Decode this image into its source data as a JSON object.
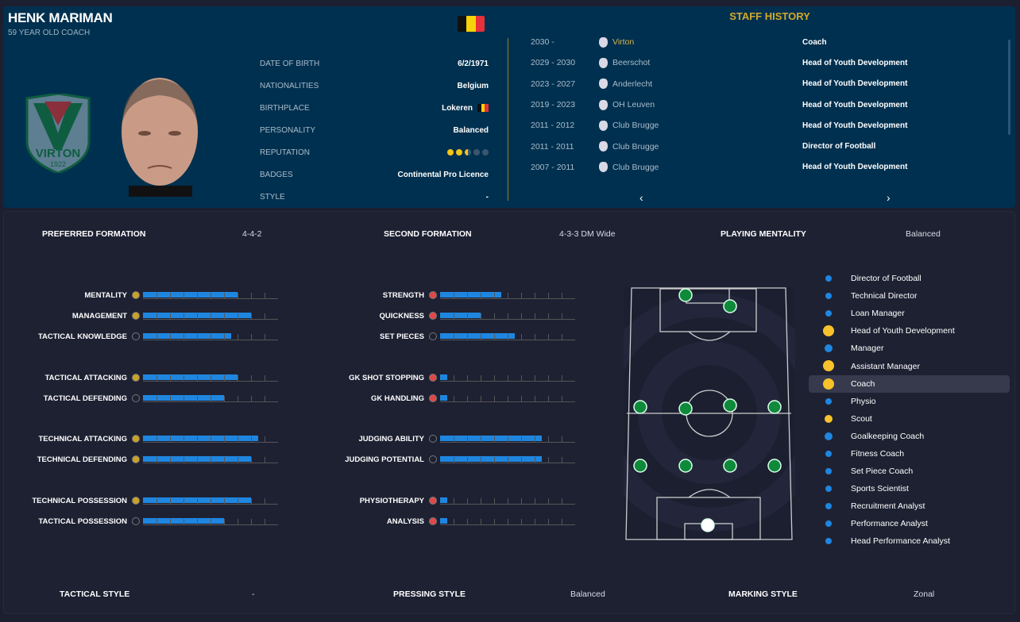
{
  "profile": {
    "name": "HENK MARIMAN",
    "subtitle": "59 YEAR OLD COACH",
    "club_crest": {
      "text": "VIRTON",
      "year": "1922"
    },
    "flag_colors": [
      "#111111",
      "#f5d20a",
      "#e8303a"
    ],
    "info": [
      {
        "label": "DATE OF BIRTH",
        "value": "6/2/1971"
      },
      {
        "label": "NATIONALITIES",
        "value": "Belgium"
      },
      {
        "label": "BIRTHPLACE",
        "value": "Lokeren"
      },
      {
        "label": "PERSONALITY",
        "value": "Balanced"
      },
      {
        "label": "REPUTATION",
        "value": "",
        "stars": 2.5,
        "max": 5
      },
      {
        "label": "BADGES",
        "value": "Continental Pro Licence"
      },
      {
        "label": "STYLE",
        "value": "-"
      }
    ]
  },
  "staff_history": {
    "title": "STAFF HISTORY",
    "rows": [
      {
        "years": "2030 -",
        "club": "Virton",
        "role": "Coach",
        "current": true
      },
      {
        "years": "2029 - 2030",
        "club": "Beerschot",
        "role": "Head of Youth Development"
      },
      {
        "years": "2023 - 2027",
        "club": "Anderlecht",
        "role": "Head of Youth Development"
      },
      {
        "years": "2019 - 2023",
        "club": "OH Leuven",
        "role": "Head of Youth Development"
      },
      {
        "years": "2011 - 2012",
        "club": "Club Brugge",
        "role": "Head of Youth Development"
      },
      {
        "years": "2011 - 2011",
        "club": "Club Brugge",
        "role": "Director of Football"
      },
      {
        "years": "2007 - 2011",
        "club": "Club Brugge",
        "role": "Head of Youth Development"
      }
    ],
    "prev": "‹",
    "next": "›"
  },
  "tactics": {
    "preferred_formation_label": "PREFERRED FORMATION",
    "preferred_formation": "4-4-2",
    "second_formation_label": "SECOND FORMATION",
    "second_formation": "4-3-3 DM Wide",
    "mentality_label": "PLAYING MENTALITY",
    "mentality": "Balanced",
    "tactical_style_label": "TACTICAL STYLE",
    "tactical_style": "-",
    "pressing_style_label": "PRESSING STYLE",
    "pressing_style": "Balanced",
    "marking_style_label": "MARKING STYLE",
    "marking_style": "Zonal"
  },
  "attributes_max": 20,
  "attributes_left": [
    {
      "name": "MENTALITY",
      "value": 14
    },
    {
      "name": "MANAGEMENT",
      "value": 16
    },
    {
      "name": "TACTICAL KNOWLEDGE",
      "value": 13
    },
    {
      "name": "TACTICAL ATTACKING",
      "value": 14
    },
    {
      "name": "TACTICAL DEFENDING",
      "value": 12
    },
    {
      "name": "TECHNICAL ATTACKING",
      "value": 17
    },
    {
      "name": "TECHNICAL DEFENDING",
      "value": 16
    },
    {
      "name": "TECHNICAL POSSESSION",
      "value": 16
    },
    {
      "name": "TACTICAL POSSESSION",
      "value": 12
    }
  ],
  "attributes_right": [
    {
      "name": "STRENGTH",
      "value": 9
    },
    {
      "name": "QUICKNESS",
      "value": 6
    },
    {
      "name": "SET PIECES",
      "value": 11
    },
    {
      "name": "GK SHOT STOPPING",
      "value": 1
    },
    {
      "name": "GK HANDLING",
      "value": 1
    },
    {
      "name": "JUDGING ABILITY",
      "value": 15
    },
    {
      "name": "JUDGING POTENTIAL",
      "value": 15
    },
    {
      "name": "PHYSIOTHERAPY",
      "value": 1
    },
    {
      "name": "ANALYSIS",
      "value": 1
    }
  ],
  "roles": [
    {
      "label": "Director of Football",
      "color": "#1f86e0",
      "level": 1
    },
    {
      "label": "Technical Director",
      "color": "#1f86e0",
      "level": 1
    },
    {
      "label": "Loan Manager",
      "color": "#1f86e0",
      "level": 1
    },
    {
      "label": "Head of Youth Development",
      "color": "#f8c22c",
      "level": 3
    },
    {
      "label": "Manager",
      "color": "#1f86e0",
      "level": 2
    },
    {
      "label": "Assistant Manager",
      "color": "#f8c22c",
      "level": 3
    },
    {
      "label": "Coach",
      "color": "#f8c22c",
      "level": 3,
      "selected": true
    },
    {
      "label": "Physio",
      "color": "#1f86e0",
      "level": 1
    },
    {
      "label": "Scout",
      "color": "#f8c22c",
      "level": 2
    },
    {
      "label": "Goalkeeping Coach",
      "color": "#1f86e0",
      "level": 2
    },
    {
      "label": "Fitness Coach",
      "color": "#1f86e0",
      "level": 1
    },
    {
      "label": "Set Piece Coach",
      "color": "#1f86e0",
      "level": 1
    },
    {
      "label": "Sports Scientist",
      "color": "#1f86e0",
      "level": 1
    },
    {
      "label": "Recruitment Analyst",
      "color": "#1f86e0",
      "level": 1
    },
    {
      "label": "Performance Analyst",
      "color": "#1f86e0",
      "level": 1
    },
    {
      "label": "Head Performance Analyst",
      "color": "#1f86e0",
      "level": 1
    }
  ],
  "formation": "4-4-2"
}
